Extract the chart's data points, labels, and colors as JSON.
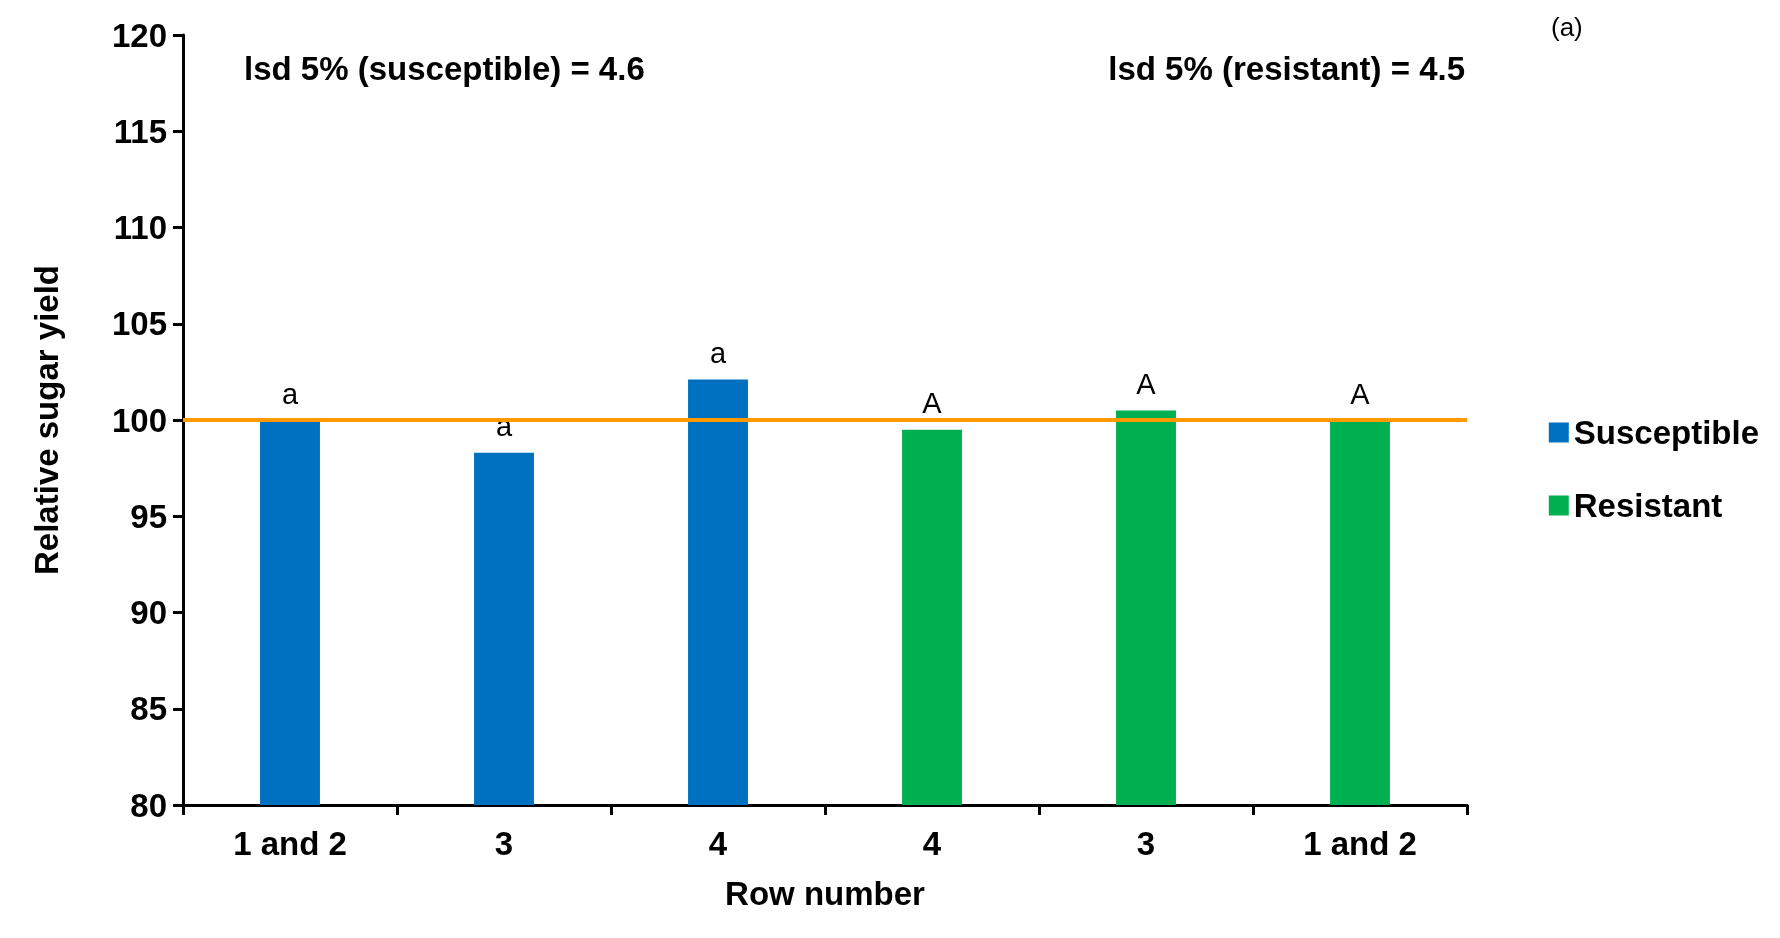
{
  "chart_data": {
    "type": "bar",
    "xlabel": "Row number",
    "ylabel": "Relative sugar yield",
    "categories": [
      "1 and 2",
      "3",
      "4",
      "4",
      "3",
      "1 and 2"
    ],
    "series": [
      {
        "name": "Susceptible",
        "color": "#0070c0",
        "values": [
          100.0,
          98.3,
          102.1,
          null,
          null,
          null
        ],
        "value_labels": [
          "a",
          "a",
          "a",
          null,
          null,
          null
        ]
      },
      {
        "name": "Resistant",
        "color": "#00b050",
        "values": [
          null,
          null,
          null,
          99.5,
          100.5,
          100.0
        ],
        "value_labels": [
          null,
          null,
          null,
          "A",
          "A",
          "A"
        ]
      }
    ],
    "ylim": [
      80,
      120
    ],
    "yticks": [
      80,
      85,
      90,
      95,
      100,
      105,
      110,
      115,
      120
    ],
    "grid": false,
    "legend": "right",
    "ref_lines": [
      {
        "axis": "y",
        "value": 100,
        "color": "#ff9900"
      }
    ],
    "annotations": [
      "lsd 5% (susceptible) = 4.6",
      "lsd 5% (resistant) = 4.5",
      "(a)"
    ]
  }
}
